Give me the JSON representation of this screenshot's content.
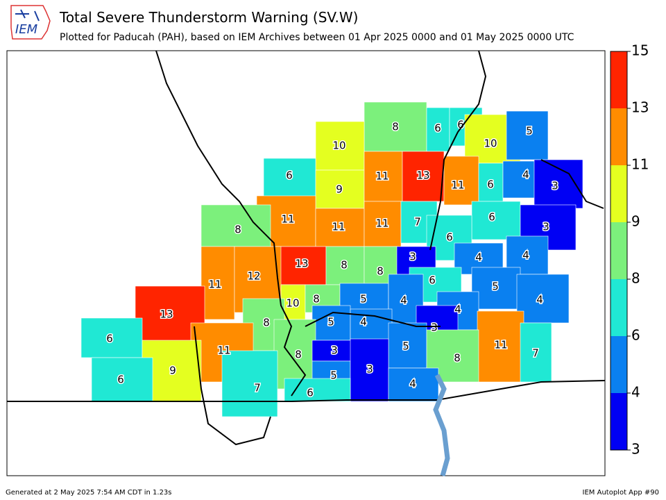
{
  "header": {
    "logo_text": "IEM",
    "title": "Total Severe Thunderstorm Warning (SV.W)",
    "subtitle": "Plotted for Paducah (PAH), based on IEM Archives  between 01 Apr 2025 0000 and 01 May 2025 0000 UTC"
  },
  "colorbar": {
    "ticks": [
      3,
      4,
      6,
      8,
      9,
      11,
      13,
      15
    ],
    "colors": [
      "#0000f4",
      "#0a80f0",
      "#20e8d4",
      "#7cf07c",
      "#e4ff20",
      "#ff8c00",
      "#ff2400"
    ]
  },
  "counties": {
    "values": [
      8,
      6,
      6,
      10,
      5,
      10,
      6,
      9,
      11,
      13,
      11,
      6,
      4,
      3,
      11,
      11,
      11,
      7,
      8,
      6,
      3,
      6,
      13,
      8,
      8,
      3,
      4,
      4,
      11,
      12,
      6,
      5,
      4,
      13,
      10,
      8,
      5,
      4,
      4,
      8,
      5,
      4,
      3,
      6,
      11,
      11,
      7,
      8,
      5,
      8,
      3,
      9,
      6,
      5,
      3,
      4,
      7,
      6
    ]
  },
  "footer": {
    "left": "Generated at 2 May 2025 7:54 AM CDT in 1.23s",
    "right": "IEM Autoplot App #90"
  }
}
